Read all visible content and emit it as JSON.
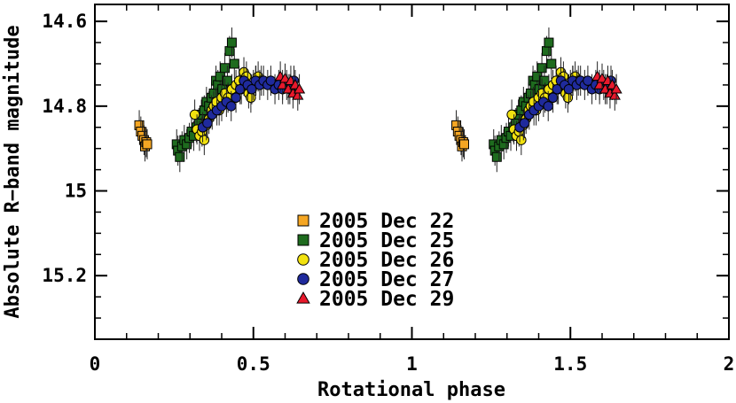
{
  "chart_data": {
    "type": "scatter",
    "xlabel": "Rotational phase",
    "ylabel": "Absolute R−band magnitude",
    "xlim": [
      0,
      2
    ],
    "ylim": [
      15.35,
      14.56
    ],
    "y_inverted": true,
    "x_ticks": [
      0,
      0.5,
      1,
      1.5,
      2
    ],
    "x_tick_labels": [
      "0",
      "0.5",
      "1",
      "1.5",
      "2"
    ],
    "y_ticks": [
      14.6,
      14.8,
      15,
      15.2
    ],
    "y_tick_labels": [
      "14.6",
      "14.8",
      "15",
      "15.2"
    ],
    "grid": false,
    "legend_position": "lower-center",
    "error_bars": true,
    "phase_repeat_offset": 1,
    "series": [
      {
        "name": "2005 Dec 22",
        "marker": "square",
        "color": "#f5a623",
        "points": [
          [
            0.14,
            14.845
          ],
          [
            0.145,
            14.86
          ],
          [
            0.15,
            14.87
          ],
          [
            0.155,
            14.88
          ],
          [
            0.158,
            14.895
          ],
          [
            0.162,
            14.885
          ],
          [
            0.165,
            14.89
          ]
        ]
      },
      {
        "name": "2005 Dec 25",
        "marker": "square",
        "color": "#1e6b1e",
        "points": [
          [
            0.258,
            14.89
          ],
          [
            0.262,
            14.905
          ],
          [
            0.268,
            14.92
          ],
          [
            0.275,
            14.895
          ],
          [
            0.282,
            14.88
          ],
          [
            0.29,
            14.89
          ],
          [
            0.298,
            14.875
          ],
          [
            0.305,
            14.86
          ],
          [
            0.312,
            14.87
          ],
          [
            0.32,
            14.85
          ],
          [
            0.328,
            14.84
          ],
          [
            0.336,
            14.82
          ],
          [
            0.345,
            14.81
          ],
          [
            0.352,
            14.79
          ],
          [
            0.36,
            14.8
          ],
          [
            0.368,
            14.78
          ],
          [
            0.375,
            14.77
          ],
          [
            0.382,
            14.74
          ],
          [
            0.388,
            14.75
          ],
          [
            0.395,
            14.73
          ],
          [
            0.402,
            14.76
          ],
          [
            0.41,
            14.71
          ],
          [
            0.418,
            14.74
          ],
          [
            0.425,
            14.67
          ],
          [
            0.432,
            14.65
          ],
          [
            0.44,
            14.7
          ]
        ]
      },
      {
        "name": "2005 Dec 26",
        "marker": "circle",
        "color": "#f2e20f",
        "points": [
          [
            0.315,
            14.82
          ],
          [
            0.322,
            14.855
          ],
          [
            0.33,
            14.87
          ],
          [
            0.338,
            14.86
          ],
          [
            0.345,
            14.88
          ],
          [
            0.352,
            14.845
          ],
          [
            0.36,
            14.83
          ],
          [
            0.368,
            14.81
          ],
          [
            0.375,
            14.8
          ],
          [
            0.383,
            14.79
          ],
          [
            0.392,
            14.81
          ],
          [
            0.4,
            14.78
          ],
          [
            0.41,
            14.77
          ],
          [
            0.42,
            14.78
          ],
          [
            0.432,
            14.76
          ],
          [
            0.445,
            14.75
          ],
          [
            0.455,
            14.74
          ],
          [
            0.462,
            14.76
          ],
          [
            0.47,
            14.72
          ],
          [
            0.478,
            14.73
          ],
          [
            0.485,
            14.77
          ],
          [
            0.492,
            14.78
          ],
          [
            0.5,
            14.75
          ],
          [
            0.508,
            14.74
          ],
          [
            0.515,
            14.73
          ],
          [
            0.525,
            14.74
          ]
        ]
      },
      {
        "name": "2005 Dec 27",
        "marker": "circle",
        "color": "#1f2a9c",
        "points": [
          [
            0.34,
            14.85
          ],
          [
            0.355,
            14.84
          ],
          [
            0.37,
            14.82
          ],
          [
            0.385,
            14.81
          ],
          [
            0.4,
            14.8
          ],
          [
            0.415,
            14.79
          ],
          [
            0.43,
            14.8
          ],
          [
            0.445,
            14.78
          ],
          [
            0.458,
            14.76
          ],
          [
            0.47,
            14.74
          ],
          [
            0.482,
            14.75
          ],
          [
            0.495,
            14.76
          ],
          [
            0.507,
            14.74
          ],
          [
            0.52,
            14.75
          ],
          [
            0.532,
            14.74
          ],
          [
            0.545,
            14.75
          ],
          [
            0.555,
            14.74
          ],
          [
            0.568,
            14.76
          ],
          [
            0.58,
            14.75
          ],
          [
            0.592,
            14.76
          ],
          [
            0.605,
            14.75
          ],
          [
            0.615,
            14.76
          ],
          [
            0.628,
            14.74
          ]
        ]
      },
      {
        "name": "2005 Dec 29",
        "marker": "triangle",
        "color": "#e8192c",
        "points": [
          [
            0.585,
            14.73
          ],
          [
            0.592,
            14.75
          ],
          [
            0.6,
            14.735
          ],
          [
            0.61,
            14.76
          ],
          [
            0.618,
            14.74
          ],
          [
            0.625,
            14.77
          ],
          [
            0.632,
            14.75
          ],
          [
            0.64,
            14.775
          ],
          [
            0.645,
            14.76
          ]
        ]
      }
    ]
  }
}
